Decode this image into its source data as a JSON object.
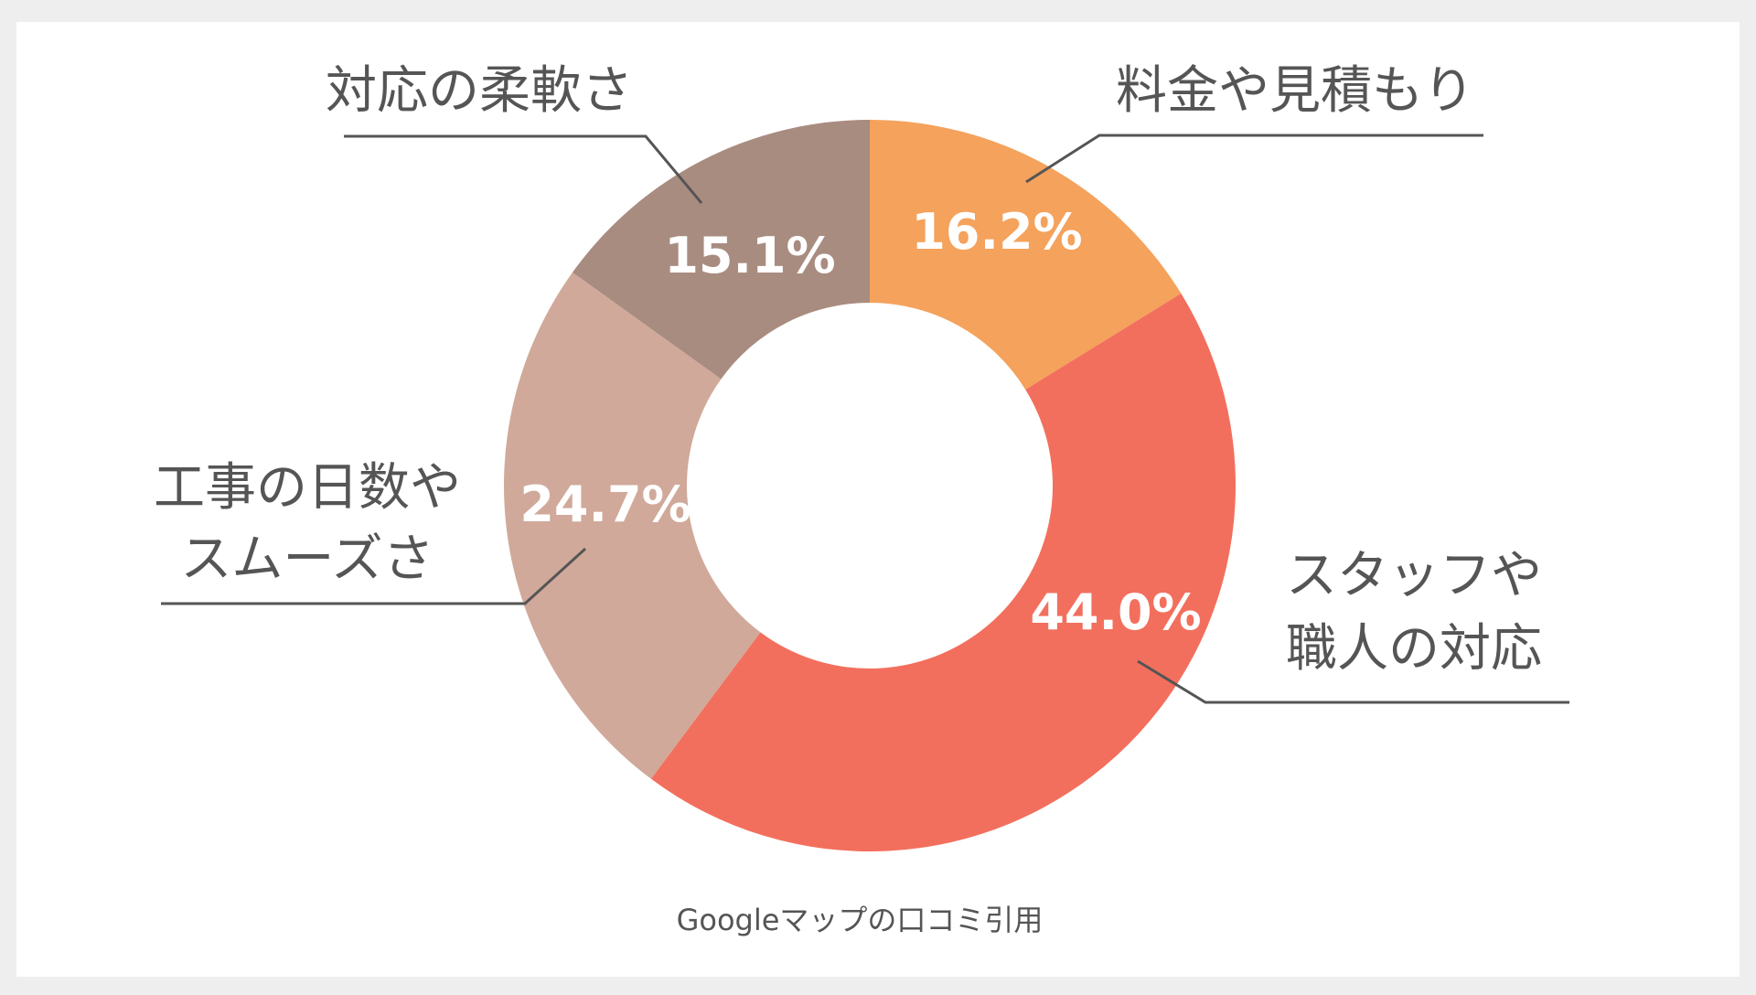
{
  "chart_data": {
    "type": "pie",
    "title": "",
    "categories": [
      "料金や見積もり",
      "スタッフや職人の対応",
      "工事の日数やスムーズさ",
      "対応の柔軟さ"
    ],
    "category_lines": [
      [
        "料金や見積もり"
      ],
      [
        "スタッフや",
        "職人の対応"
      ],
      [
        "工事の日数や",
        "スムーズさ"
      ],
      [
        "対応の柔軟さ"
      ]
    ],
    "values": [
      16.2,
      44.0,
      24.7,
      15.1
    ],
    "value_labels": [
      "16.2%",
      "44.0%",
      "24.7%",
      "15.1%"
    ],
    "colors": [
      "#f4a25c",
      "#f36f5d",
      "#d0a99a",
      "#a98c80"
    ],
    "donut": true,
    "start_angle": "12 o'clock",
    "direction": "clockwise",
    "legend": "none",
    "source_note": "Googleマップの口コミ引用"
  }
}
